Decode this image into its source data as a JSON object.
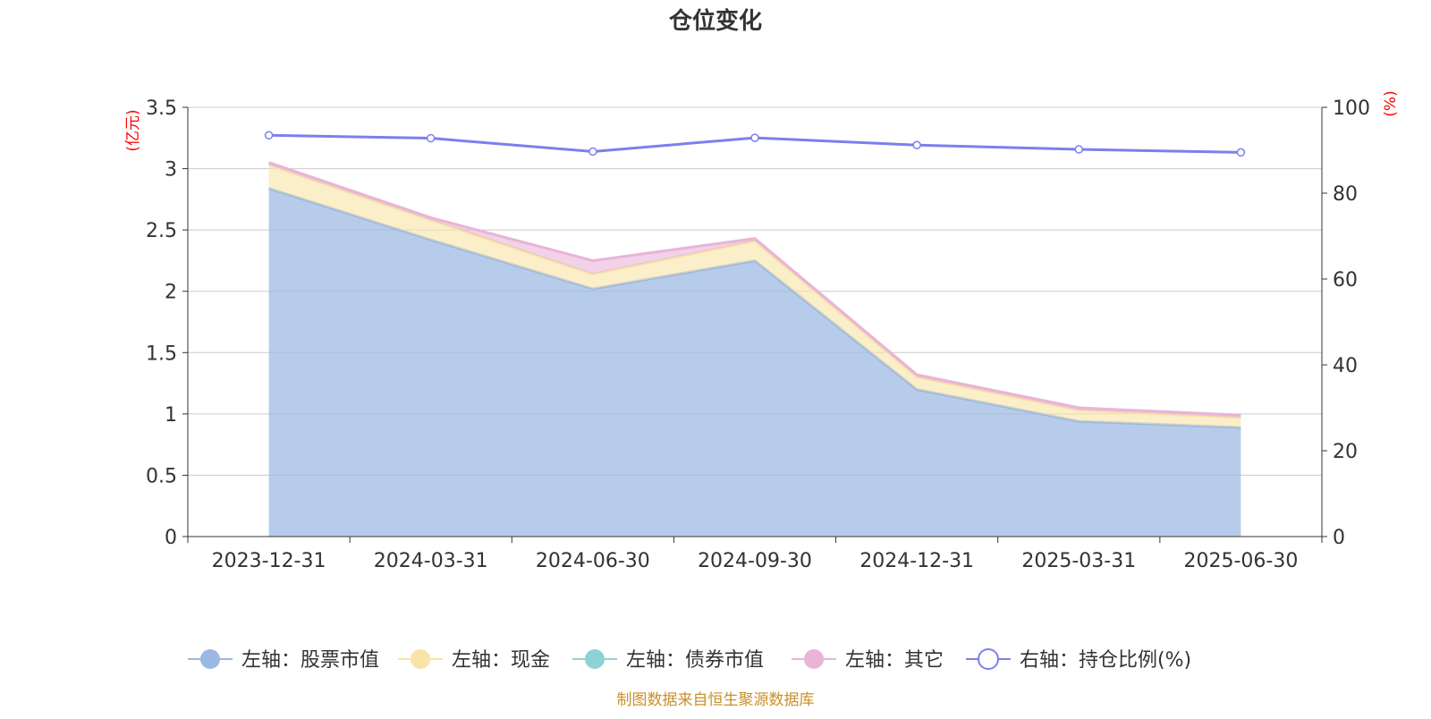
{
  "chart_data": {
    "type": "area",
    "title": "仓位变化",
    "source_note": "制图数据来自恒生聚源数据库",
    "left_axis": {
      "unit_label": "(亿元)",
      "ylim": [
        0,
        3.5
      ],
      "ticks": [
        "0",
        "0.5",
        "1",
        "1.5",
        "2",
        "2.5",
        "3",
        "3.5"
      ]
    },
    "right_axis": {
      "unit_label": "(%)",
      "ylim": [
        0,
        100
      ],
      "ticks": [
        "0",
        "20",
        "40",
        "60",
        "80",
        "100"
      ]
    },
    "categories": [
      "2023-12-31",
      "2024-03-31",
      "2024-06-30",
      "2024-09-30",
      "2024-12-31",
      "2025-03-31",
      "2025-06-30"
    ],
    "grid": true,
    "legend_position": "bottom",
    "series": [
      {
        "name": "左轴：股票市值",
        "axis": "left",
        "stack": true,
        "color": "#9bb8e2",
        "legend_icon": "circle-filled",
        "values": [
          2.84,
          2.42,
          2.02,
          2.25,
          1.2,
          0.94,
          0.89
        ]
      },
      {
        "name": "左轴：现金",
        "axis": "left",
        "stack": true,
        "color": "#f8e4a6",
        "legend_icon": "circle-filled",
        "values": [
          0.19,
          0.16,
          0.12,
          0.16,
          0.1,
          0.09,
          0.08
        ]
      },
      {
        "name": "左轴：债券市值",
        "axis": "left",
        "stack": true,
        "color": "#8ed3d4",
        "legend_icon": "circle-filled",
        "values": [
          0,
          0,
          0,
          0,
          0,
          0,
          0
        ]
      },
      {
        "name": "左轴：其它",
        "axis": "left",
        "stack": true,
        "color": "#e8b4d8",
        "legend_icon": "circle-filled",
        "values": [
          0.02,
          0.02,
          0.11,
          0.02,
          0.02,
          0.02,
          0.02
        ]
      },
      {
        "name": "右轴：持仓比例(%)",
        "axis": "right",
        "type": "line",
        "color": "#7b7fee",
        "legend_icon": "circle-hollow",
        "values": [
          93.5,
          92.8,
          89.7,
          92.9,
          91.2,
          90.2,
          89.5
        ]
      }
    ]
  }
}
